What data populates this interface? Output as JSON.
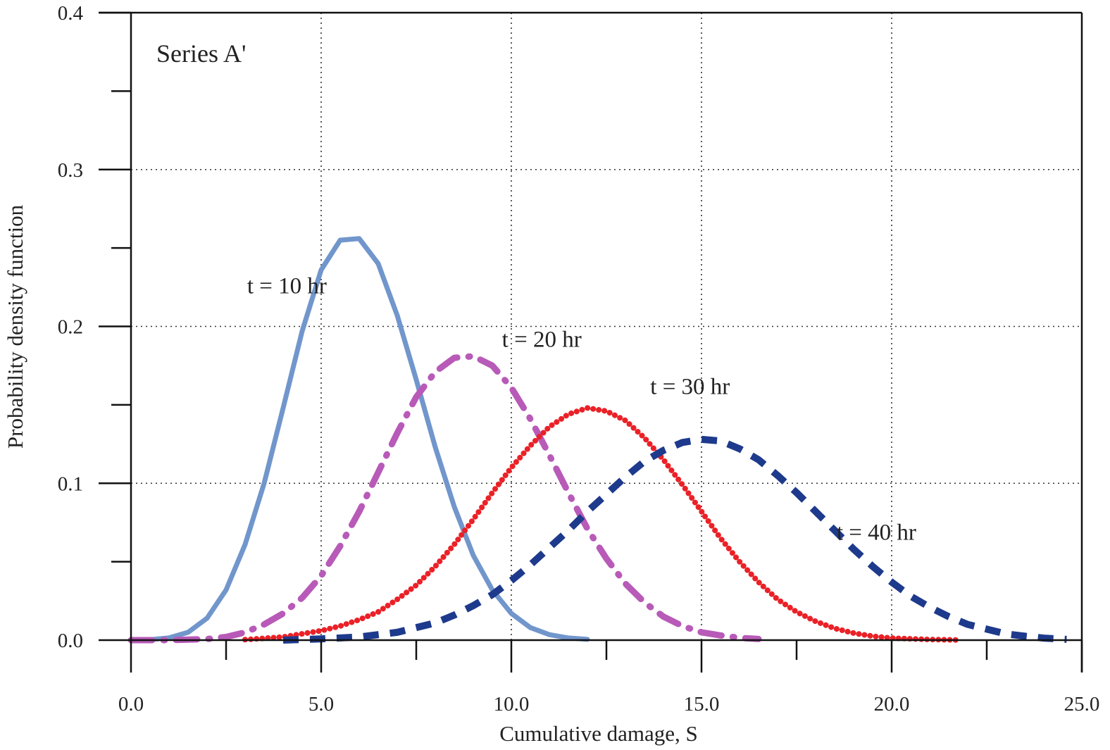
{
  "chart_data": {
    "type": "line",
    "title": "",
    "panel_label": "Series A'",
    "xlabel": "Cumulative damage, S",
    "ylabel": "Probability density function",
    "xlim": [
      0,
      25
    ],
    "ylim": [
      0,
      0.4
    ],
    "x_ticks": [
      0,
      5,
      10,
      15,
      20,
      25
    ],
    "x_tick_labels": [
      "0.0",
      "5.0",
      "10.0",
      "15.0",
      "20.0",
      "25.0"
    ],
    "y_ticks": [
      0,
      0.1,
      0.2,
      0.3,
      0.4
    ],
    "y_tick_labels": [
      "0.0",
      "0.1",
      "0.2",
      "0.3",
      "0.4"
    ],
    "grid": true,
    "legend": "none",
    "series": [
      {
        "label": "t = 10 hr",
        "color": "#7196cc",
        "style": "solid",
        "x": [
          0.0,
          0.5,
          1.0,
          1.5,
          2.0,
          2.5,
          3.0,
          3.5,
          4.0,
          4.5,
          5.0,
          5.5,
          6.0,
          6.5,
          7.0,
          7.5,
          8.0,
          8.5,
          9.0,
          9.5,
          10.0,
          10.5,
          11.0,
          11.5,
          12.0
        ],
        "y": [
          0.0,
          0.0003,
          0.0015,
          0.005,
          0.014,
          0.032,
          0.061,
          0.1,
          0.148,
          0.197,
          0.236,
          0.255,
          0.256,
          0.24,
          0.207,
          0.166,
          0.123,
          0.085,
          0.054,
          0.032,
          0.017,
          0.008,
          0.0035,
          0.0014,
          0.0005
        ]
      },
      {
        "label": "t = 20 hr",
        "color": "#b85ab8",
        "style": "dashdot",
        "x": [
          0.0,
          1.0,
          2.0,
          2.5,
          3.0,
          3.5,
          4.0,
          4.5,
          5.0,
          5.5,
          6.0,
          6.5,
          7.0,
          7.5,
          8.0,
          8.5,
          9.0,
          9.5,
          10.0,
          10.5,
          11.0,
          11.5,
          12.0,
          12.5,
          13.0,
          13.5,
          14.0,
          14.5,
          15.0,
          15.5,
          16.0,
          16.5
        ],
        "y": [
          0.0,
          0.0,
          0.0007,
          0.002,
          0.005,
          0.01,
          0.017,
          0.027,
          0.041,
          0.06,
          0.082,
          0.107,
          0.132,
          0.155,
          0.171,
          0.18,
          0.181,
          0.175,
          0.161,
          0.141,
          0.118,
          0.094,
          0.071,
          0.052,
          0.036,
          0.024,
          0.015,
          0.009,
          0.005,
          0.003,
          0.0015,
          0.0007
        ]
      },
      {
        "label": "t = 30 hr",
        "color": "#ea2127",
        "style": "dotted",
        "x": [
          3.0,
          4.0,
          5.0,
          5.5,
          6.0,
          6.5,
          7.0,
          7.5,
          8.0,
          8.5,
          9.0,
          9.5,
          10.0,
          10.5,
          11.0,
          11.5,
          12.0,
          12.5,
          13.0,
          13.5,
          14.0,
          14.5,
          15.0,
          15.5,
          16.0,
          16.5,
          17.0,
          17.5,
          18.0,
          18.5,
          19.0,
          19.5,
          20.0,
          21.0,
          21.8
        ],
        "y": [
          0.0003,
          0.002,
          0.006,
          0.009,
          0.013,
          0.018,
          0.026,
          0.035,
          0.047,
          0.061,
          0.077,
          0.094,
          0.11,
          0.124,
          0.136,
          0.144,
          0.148,
          0.146,
          0.14,
          0.129,
          0.115,
          0.099,
          0.082,
          0.065,
          0.05,
          0.037,
          0.026,
          0.018,
          0.012,
          0.0075,
          0.0045,
          0.0025,
          0.0013,
          0.0004,
          0.0001
        ]
      },
      {
        "label": "t = 40 hr",
        "color": "#1e3a8c",
        "style": "dashed",
        "x": [
          4.0,
          5.0,
          6.0,
          7.0,
          8.0,
          8.5,
          9.0,
          9.5,
          10.0,
          10.5,
          11.0,
          11.5,
          12.0,
          12.5,
          13.0,
          13.5,
          14.0,
          14.5,
          15.0,
          15.5,
          16.0,
          16.5,
          17.0,
          17.5,
          18.0,
          18.5,
          19.0,
          19.5,
          20.0,
          20.5,
          21.0,
          21.5,
          22.0,
          22.5,
          23.0,
          23.5,
          24.0,
          24.6
        ],
        "y": [
          0.0,
          0.0008,
          0.002,
          0.005,
          0.011,
          0.016,
          0.022,
          0.029,
          0.038,
          0.048,
          0.059,
          0.07,
          0.082,
          0.093,
          0.104,
          0.114,
          0.121,
          0.126,
          0.128,
          0.127,
          0.122,
          0.115,
          0.105,
          0.094,
          0.082,
          0.07,
          0.058,
          0.047,
          0.037,
          0.028,
          0.021,
          0.015,
          0.01,
          0.007,
          0.004,
          0.0025,
          0.0013,
          0.0005
        ]
      }
    ],
    "annotations": [
      {
        "text": "t = 10 hr",
        "x": 4.1,
        "y": 0.221
      },
      {
        "text": "t = 20 hr",
        "x": 10.8,
        "y": 0.187
      },
      {
        "text": "t = 30 hr",
        "x": 14.7,
        "y": 0.157
      },
      {
        "text": "t = 40 hr",
        "x": 19.6,
        "y": 0.064
      }
    ]
  }
}
